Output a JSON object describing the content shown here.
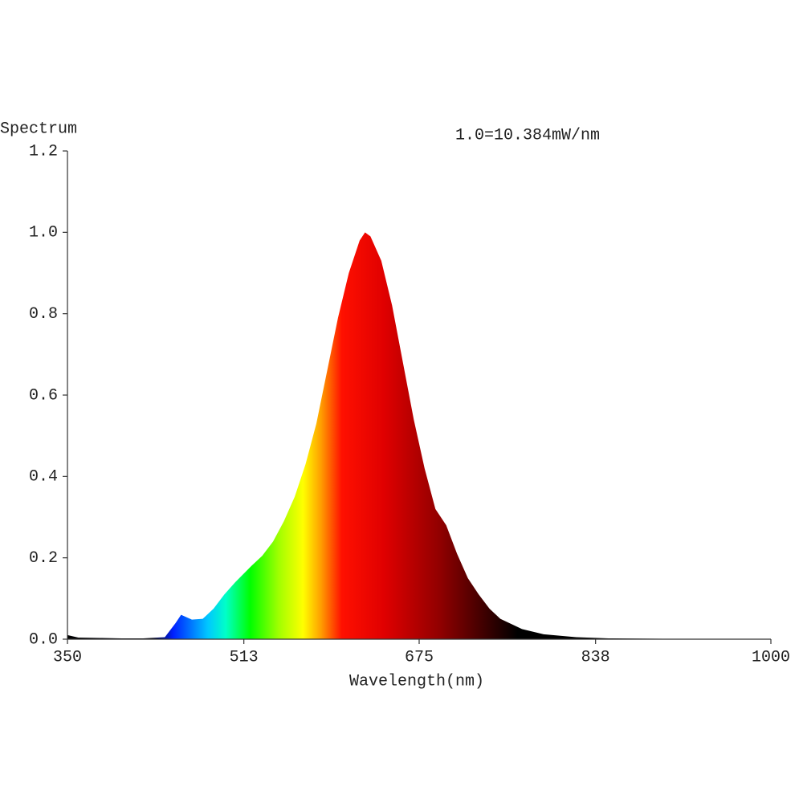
{
  "chart_data": {
    "type": "area",
    "title": "Spectrum",
    "annotation": "1.0=10.384mW/nm",
    "x_label": "Wavelength(nm)",
    "x": [
      350,
      360,
      380,
      400,
      420,
      440,
      450,
      455,
      465,
      475,
      485,
      495,
      505,
      520,
      530,
      540,
      550,
      560,
      570,
      580,
      590,
      600,
      610,
      620,
      625,
      630,
      640,
      650,
      660,
      670,
      680,
      690,
      700,
      710,
      720,
      730,
      740,
      750,
      770,
      790,
      820,
      850,
      900,
      1000
    ],
    "y": [
      0.01,
      0.004,
      0.003,
      0.002,
      0.002,
      0.005,
      0.04,
      0.06,
      0.048,
      0.05,
      0.075,
      0.11,
      0.14,
      0.18,
      0.205,
      0.24,
      0.29,
      0.35,
      0.43,
      0.53,
      0.66,
      0.79,
      0.9,
      0.98,
      1.0,
      0.99,
      0.93,
      0.82,
      0.68,
      0.54,
      0.42,
      0.32,
      0.28,
      0.21,
      0.15,
      0.11,
      0.075,
      0.05,
      0.025,
      0.012,
      0.005,
      0.002,
      0.001,
      0
    ],
    "xlim": [
      350,
      1000
    ],
    "ylim": [
      0,
      1.2
    ],
    "xticks": [
      350,
      513,
      675,
      838,
      1000
    ],
    "yticks": [
      {
        "value": 0,
        "label": "0.0"
      },
      0.2,
      0.4,
      0.6,
      0.8,
      {
        "value": 1,
        "label": "1.0"
      },
      1.2
    ]
  }
}
